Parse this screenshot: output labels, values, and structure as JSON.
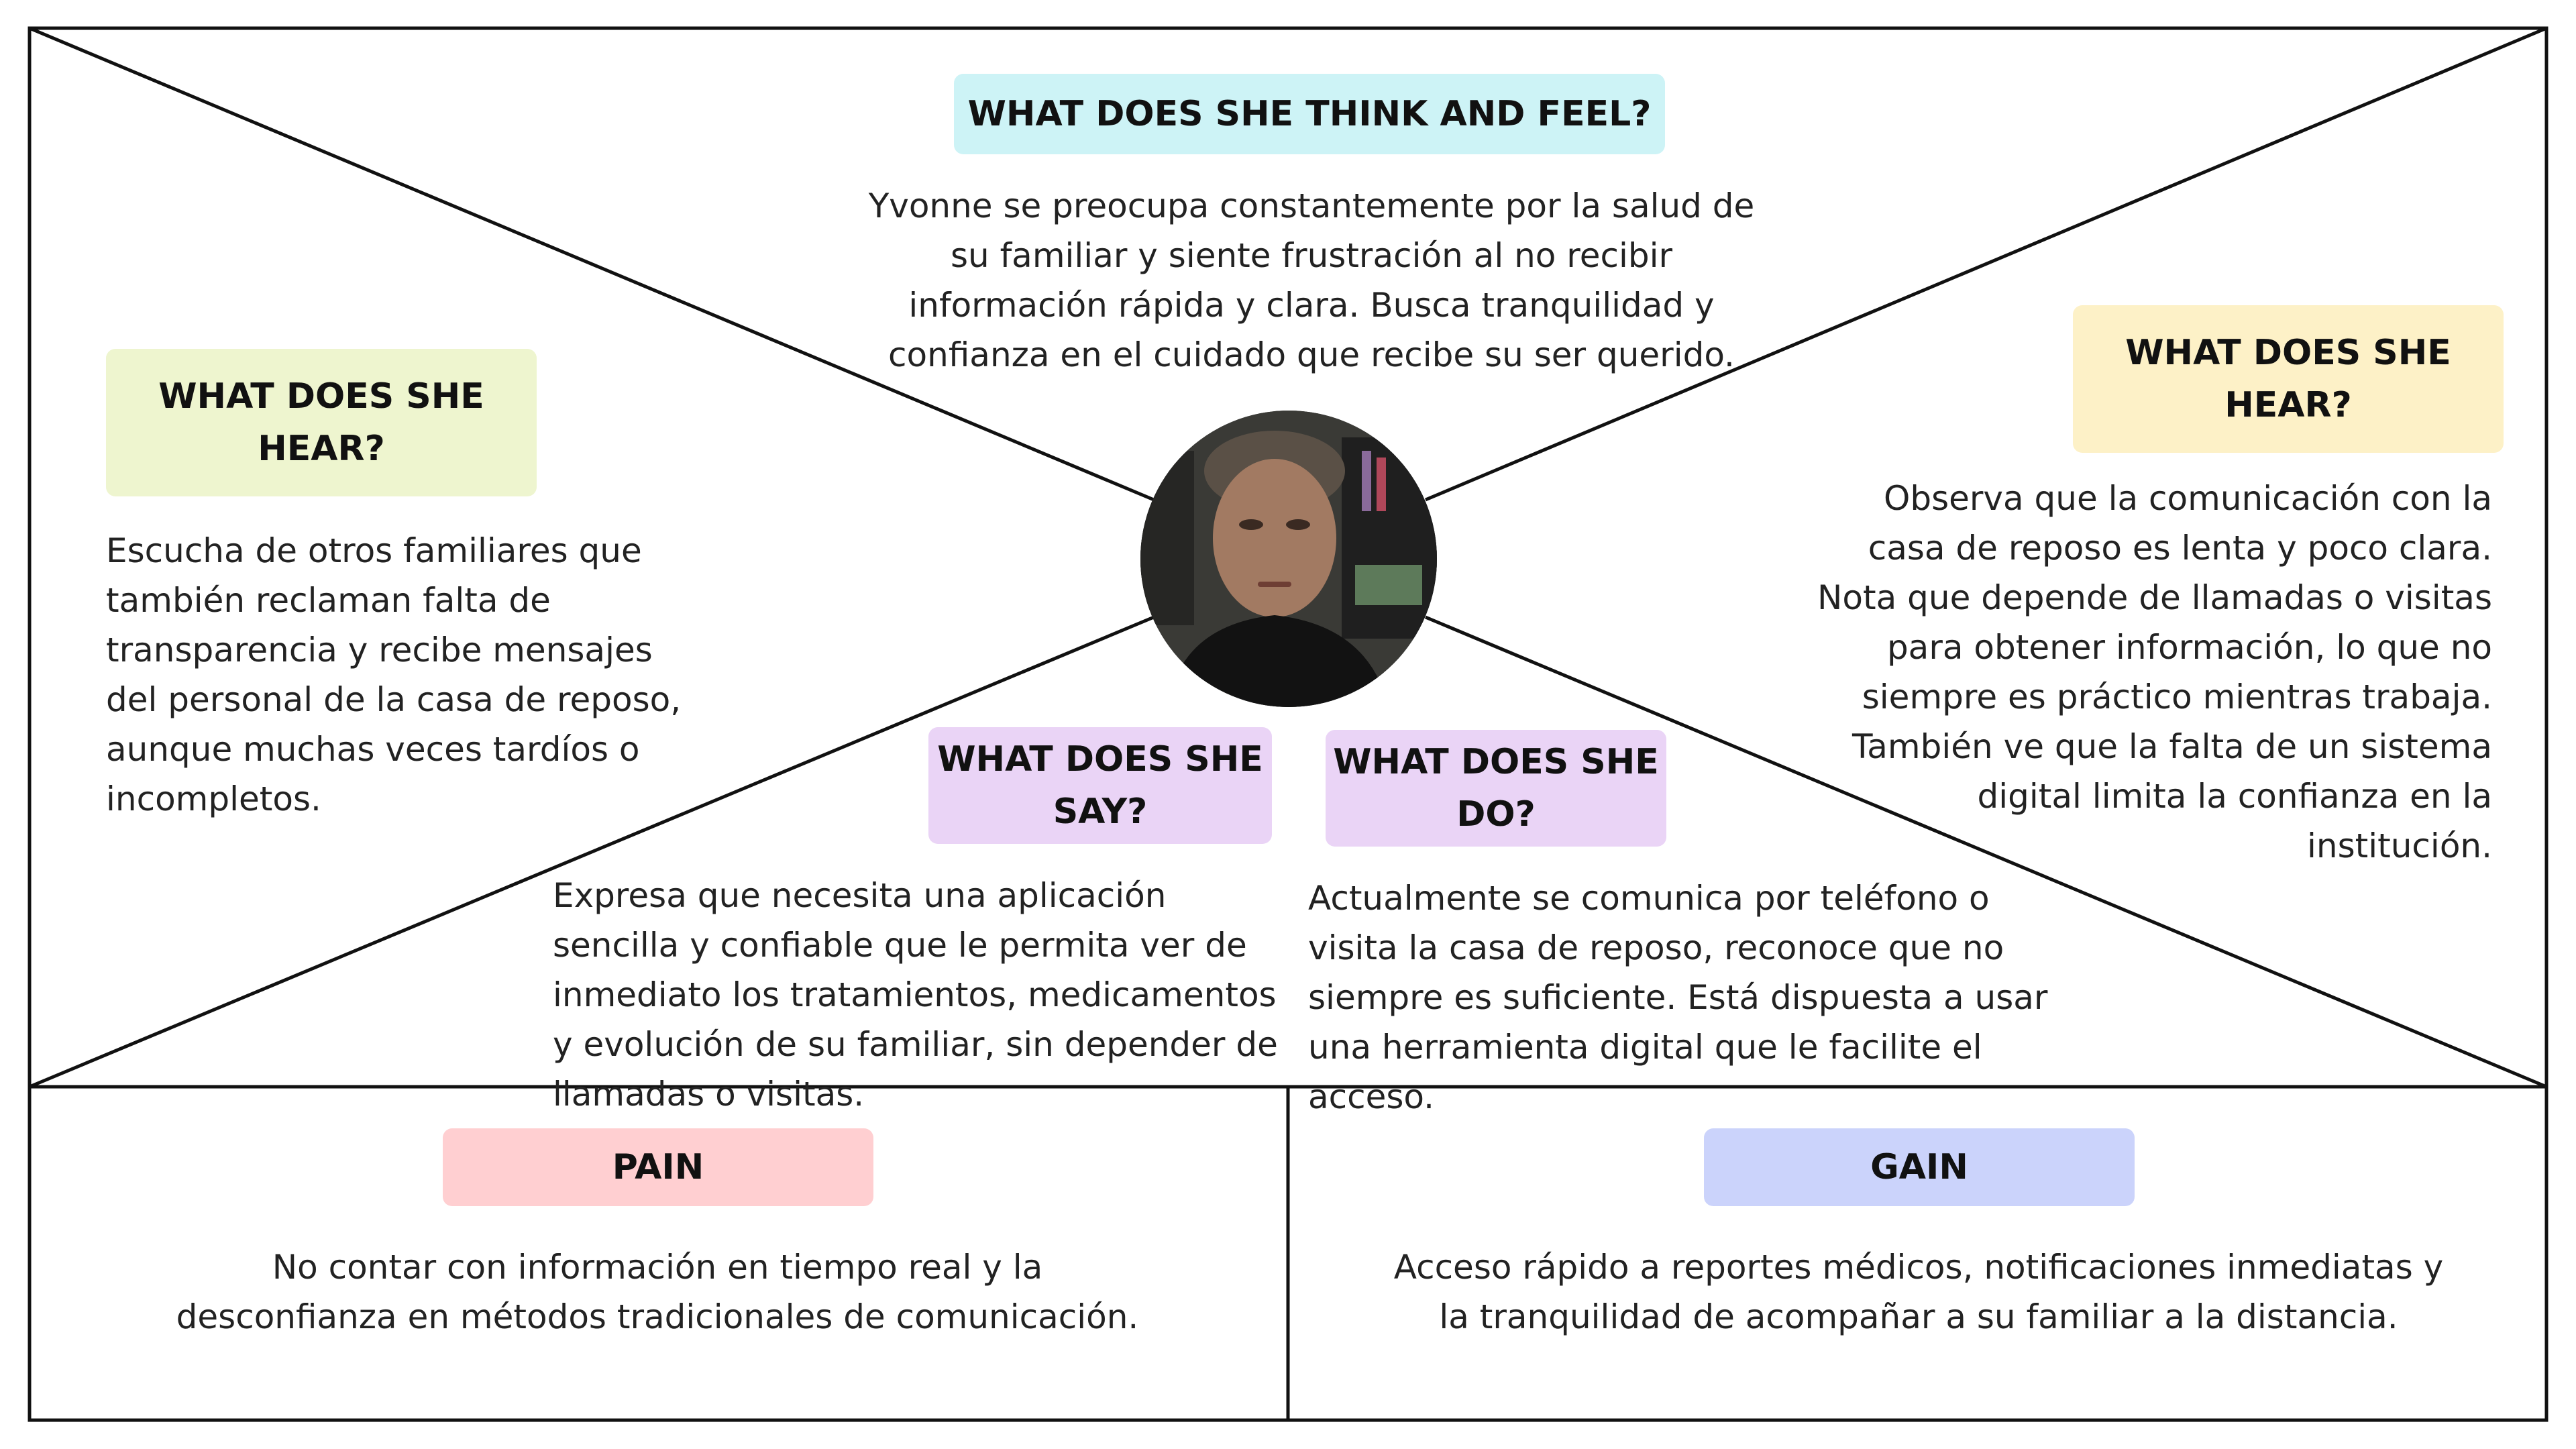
{
  "colors": {
    "think_feel": "#cdf3f6",
    "hear_left": "#eef5cf",
    "hear_right": "#fdf1c7",
    "say": "#ead4f6",
    "do": "#ead4f6",
    "pain": "#ffcfd1",
    "gain": "#cbd3fb",
    "line": "#111111"
  },
  "avatar": {
    "icon": "person-photo-icon"
  },
  "think_feel": {
    "title": "WHAT DOES SHE THINK AND FEEL?",
    "text": "Yvonne se preocupa constantemente por la salud de su familiar y siente frustración al no recibir información rápida y clara. Busca tranquilidad y confianza en el cuidado que recibe su ser querido."
  },
  "hear_left": {
    "title": "WHAT DOES SHE HEAR?",
    "text": "Escucha de otros familiares que también reclaman falta de transparencia y recibe mensajes del personal de la casa de reposo, aunque muchas veces tardíos o incompletos."
  },
  "hear_right": {
    "title": "WHAT DOES SHE HEAR?",
    "text": "Observa que la comunicación con la casa de reposo es lenta y poco clara. Nota que depende de llamadas o visitas para obtener información, lo que no siempre es práctico mientras trabaja. También ve que la falta de un sistema digital limita la confianza en la institución."
  },
  "say": {
    "title": "WHAT DOES SHE SAY?",
    "text": "Expresa que necesita una aplicación sencilla y confiable que le permita ver de inmediato los tratamientos, medicamentos y evolución de su familiar, sin depender de llamadas o visitas."
  },
  "do": {
    "title": "WHAT DOES SHE DO?",
    "text": "Actualmente se comunica por teléfono o visita la casa de reposo, reconoce que no siempre es suficiente. Está dispuesta a usar una herramienta digital que le facilite el acceso."
  },
  "pain": {
    "title": "PAIN",
    "text": "No contar con información en tiempo real y la desconfianza en métodos tradicionales de comunicación."
  },
  "gain": {
    "title": "GAIN",
    "text": "Acceso rápido a reportes médicos, notificaciones inmediatas y la tranquilidad de acompañar a su familiar a la distancia."
  }
}
